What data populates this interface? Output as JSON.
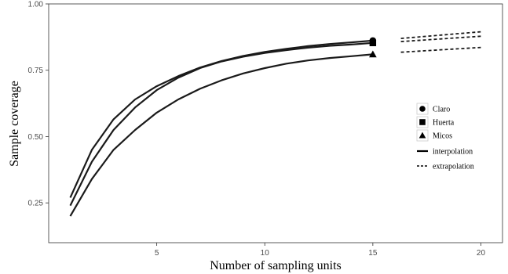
{
  "chart_data": {
    "type": "line",
    "xlabel": "Number of sampling units",
    "ylabel": "Sample coverage",
    "xlim": [
      0,
      21
    ],
    "ylim": [
      0.1,
      1.0
    ],
    "x_ticks": [
      5,
      10,
      15,
      20
    ],
    "y_ticks": [
      0.25,
      0.5,
      0.75,
      1.0
    ],
    "x_tick_labels": [
      "5",
      "10",
      "15",
      "20"
    ],
    "y_tick_labels": [
      "0.25",
      "0.50",
      "0.75",
      "1.00"
    ],
    "grid": false,
    "legend_position": "right",
    "legend_marker_labels": [
      "Claro",
      "Huerta",
      "Micos"
    ],
    "legend_line_labels": [
      "interpolation",
      "extrapolation"
    ],
    "series": [
      {
        "name": "Claro",
        "marker": "circle",
        "interpolation": {
          "x": [
            1,
            2,
            3,
            4,
            5,
            6,
            7,
            8,
            9,
            10,
            11,
            12,
            13,
            14,
            15
          ],
          "y": [
            0.27,
            0.45,
            0.565,
            0.64,
            0.69,
            0.728,
            0.76,
            0.785,
            0.804,
            0.819,
            0.831,
            0.841,
            0.849,
            0.855,
            0.862
          ]
        },
        "reference_point": {
          "x": 15,
          "y": 0.862
        },
        "extrapolation": {
          "x": [
            16.3,
            20
          ],
          "y": [
            0.87,
            0.895
          ]
        }
      },
      {
        "name": "Huerta",
        "marker": "square",
        "interpolation": {
          "x": [
            1,
            2,
            3,
            4,
            5,
            6,
            7,
            8,
            9,
            10,
            11,
            12,
            13,
            14,
            15
          ],
          "y": [
            0.24,
            0.405,
            0.525,
            0.61,
            0.675,
            0.722,
            0.758,
            0.783,
            0.801,
            0.815,
            0.826,
            0.835,
            0.842,
            0.847,
            0.853
          ]
        },
        "reference_point": {
          "x": 15,
          "y": 0.853
        },
        "extrapolation": {
          "x": [
            16.3,
            20
          ],
          "y": [
            0.858,
            0.878
          ]
        }
      },
      {
        "name": "Micos",
        "marker": "triangle",
        "interpolation": {
          "x": [
            1,
            2,
            3,
            4,
            5,
            6,
            7,
            8,
            9,
            10,
            11,
            12,
            13,
            14,
            15
          ],
          "y": [
            0.2,
            0.34,
            0.45,
            0.525,
            0.59,
            0.64,
            0.68,
            0.712,
            0.738,
            0.758,
            0.775,
            0.787,
            0.796,
            0.803,
            0.81
          ]
        },
        "reference_point": {
          "x": 15,
          "y": 0.81
        },
        "extrapolation": {
          "x": [
            16.3,
            20
          ],
          "y": [
            0.818,
            0.836
          ]
        }
      }
    ]
  }
}
